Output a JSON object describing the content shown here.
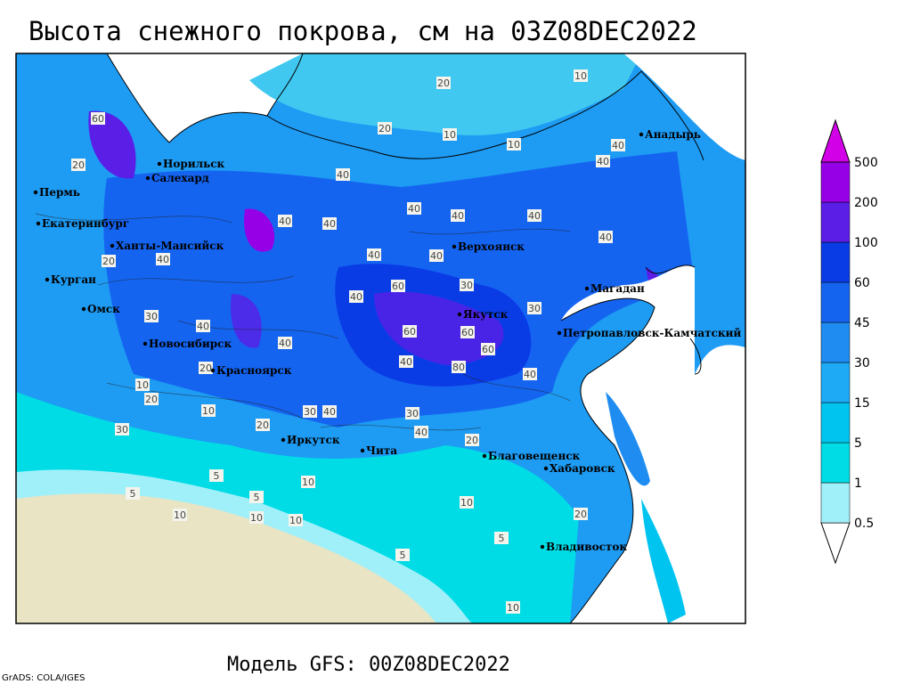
{
  "header": {
    "title": "Высота снежного покрова, см на 03Z08DEC2022"
  },
  "footer": {
    "model": "Модель GFS: 00Z08DEC2022",
    "credit": "GrADS: COLA/IGES"
  },
  "colorbar": {
    "levels": [
      0.5,
      1,
      5,
      15,
      30,
      45,
      60,
      100,
      200,
      500
    ],
    "colors": [
      "#ffffff",
      "#a0f0fa",
      "#00dce6",
      "#00c4f0",
      "#1eaaf5",
      "#1e8cf0",
      "#1464f0",
      "#0a3ce6",
      "#5a1ee6",
      "#9600e6",
      "#d200e6"
    ]
  },
  "cities": [
    "Анадырь",
    "Норильск",
    "Салехард",
    "Пермь",
    "Екатеринбург",
    "Ханты-Мансийск",
    "Верхоянск",
    "Курган",
    "Магадан",
    "Омск",
    "Якутск",
    "Петропавловск-Камчатский",
    "Новосибирск",
    "Красноярск",
    "Иркутск",
    "Чита",
    "Благовещенск",
    "Хабаровск",
    "Владивосток"
  ],
  "contour_labels": [
    "20",
    "10",
    "20",
    "10",
    "10",
    "20",
    "40",
    "40",
    "40",
    "40",
    "40",
    "40",
    "40",
    "40",
    "20",
    "40",
    "40",
    "40",
    "30",
    "60",
    "40",
    "30",
    "40",
    "60",
    "60",
    "60",
    "80",
    "40",
    "40",
    "30",
    "40",
    "20",
    "10",
    "20",
    "30",
    "40",
    "10",
    "20",
    "30",
    "40",
    "30",
    "20",
    "5",
    "5",
    "5",
    "10",
    "10",
    "10",
    "5",
    "10",
    "20",
    "10",
    "5",
    "10",
    "40",
    "60"
  ]
}
